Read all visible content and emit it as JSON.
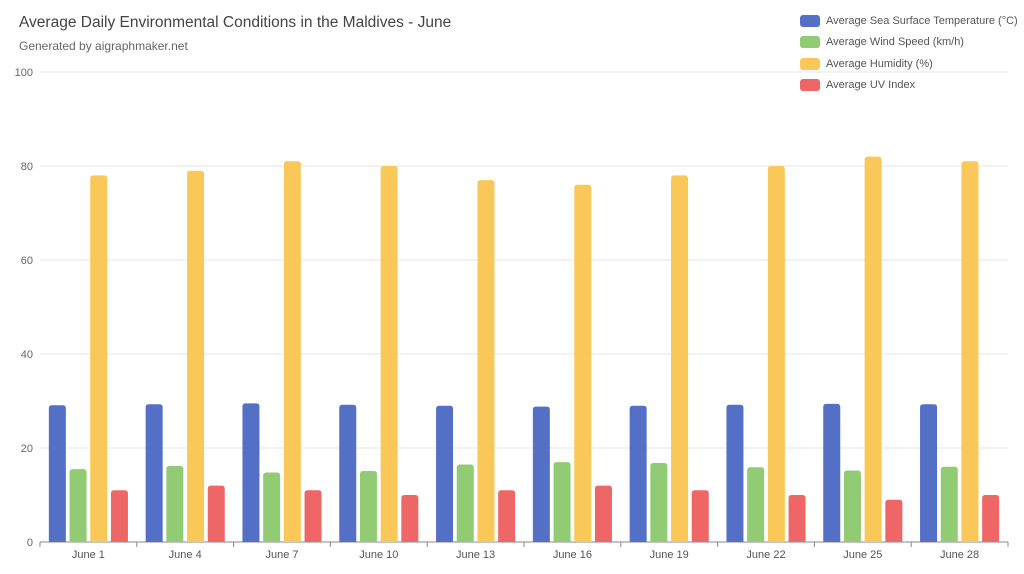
{
  "chart_data": {
    "type": "bar",
    "title": "Average Daily Environmental Conditions in the Maldives - June",
    "subtitle": "Generated by aigraphmaker.net",
    "xlabel": "",
    "ylabel": "",
    "ylim": [
      0,
      100
    ],
    "yticks": [
      0,
      20,
      40,
      60,
      80,
      100
    ],
    "grid": true,
    "legend_position": "top-right",
    "categories": [
      "June 1",
      "June 4",
      "June 7",
      "June 10",
      "June 13",
      "June 16",
      "June 19",
      "June 22",
      "June 25",
      "June 28"
    ],
    "series": [
      {
        "name": "Average Sea Surface Temperature (°C)",
        "color": "#5470c6",
        "values": [
          29.1,
          29.3,
          29.5,
          29.2,
          29.0,
          28.8,
          29.0,
          29.2,
          29.4,
          29.3
        ]
      },
      {
        "name": "Average Wind Speed (km/h)",
        "color": "#91cc75",
        "values": [
          15.5,
          16.2,
          14.8,
          15.1,
          16.5,
          17.0,
          16.8,
          15.9,
          15.2,
          16.0
        ]
      },
      {
        "name": "Average Humidity (%)",
        "color": "#fac858",
        "values": [
          78,
          79,
          81,
          80,
          77,
          76,
          78,
          80,
          82,
          81
        ]
      },
      {
        "name": "Average UV Index",
        "color": "#ee6666",
        "values": [
          11,
          12,
          11,
          10,
          11,
          12,
          11,
          10,
          9,
          10
        ]
      }
    ]
  }
}
